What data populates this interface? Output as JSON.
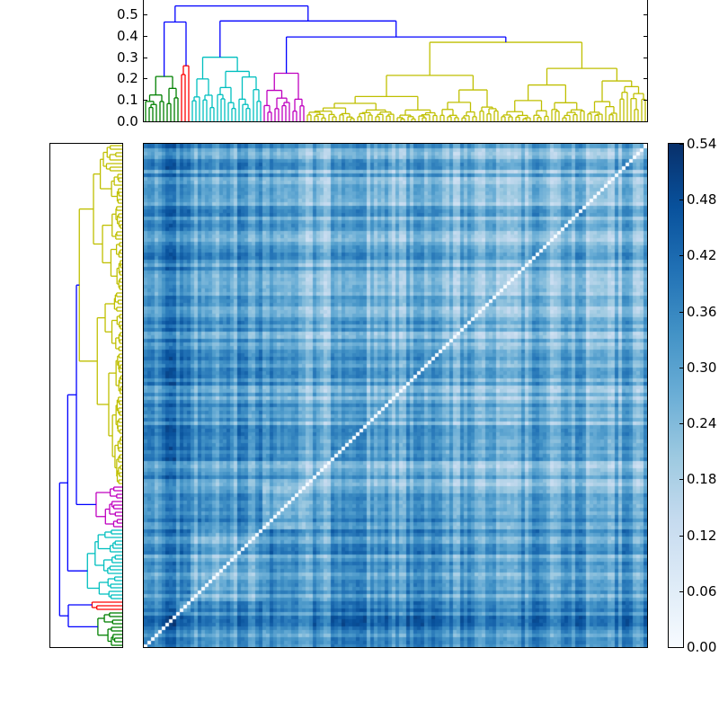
{
  "chart_data": {
    "type": "heatmap",
    "title": "",
    "description": "Clustered distance matrix heatmap with hierarchical-clustering dendrograms on top and left, colorbar on right",
    "colormap": "Blues",
    "matrix_size": 140,
    "colorbar": {
      "min": 0.0,
      "max": 0.54,
      "ticks": [
        "0.00",
        "0.06",
        "0.12",
        "0.18",
        "0.24",
        "0.30",
        "0.36",
        "0.42",
        "0.48",
        "0.54"
      ]
    },
    "top_dendrogram": {
      "ylim": [
        0.0,
        0.568
      ],
      "yticks": [
        "0.0",
        "0.1",
        "0.2",
        "0.3",
        "0.4",
        "0.5"
      ],
      "clusters": [
        {
          "name": "green",
          "color": "#008000",
          "leaves": 10,
          "height": 0.21
        },
        {
          "name": "red",
          "color": "#ff0000",
          "leaves": 3,
          "height": 0.26
        },
        {
          "name": "cyan",
          "color": "#00bfbf",
          "leaves": 20,
          "height": 0.3
        },
        {
          "name": "magenta",
          "color": "#bf00bf",
          "leaves": 12,
          "height": 0.225
        },
        {
          "name": "olive",
          "color": "#bfbf00",
          "leaves": 95,
          "height": 0.37
        }
      ],
      "links": [
        {
          "color": "#0000ff",
          "join": [
            "green",
            "red"
          ],
          "height": 0.465
        },
        {
          "color": "#0000ff",
          "join": [
            "magenta",
            "olive"
          ],
          "height": 0.395
        },
        {
          "color": "#0000ff",
          "join": [
            "cyan",
            "magenta+olive"
          ],
          "height": 0.47
        },
        {
          "color": "#0000ff",
          "join": [
            "green+red",
            "rest"
          ],
          "height": 0.54
        }
      ]
    },
    "left_dendrogram": {
      "orientation": "left",
      "clusters_top_to_bottom": [
        "olive",
        "magenta",
        "cyan",
        "red",
        "green"
      ]
    },
    "diagonal": "zero (white) from bottom-left to top-right"
  }
}
